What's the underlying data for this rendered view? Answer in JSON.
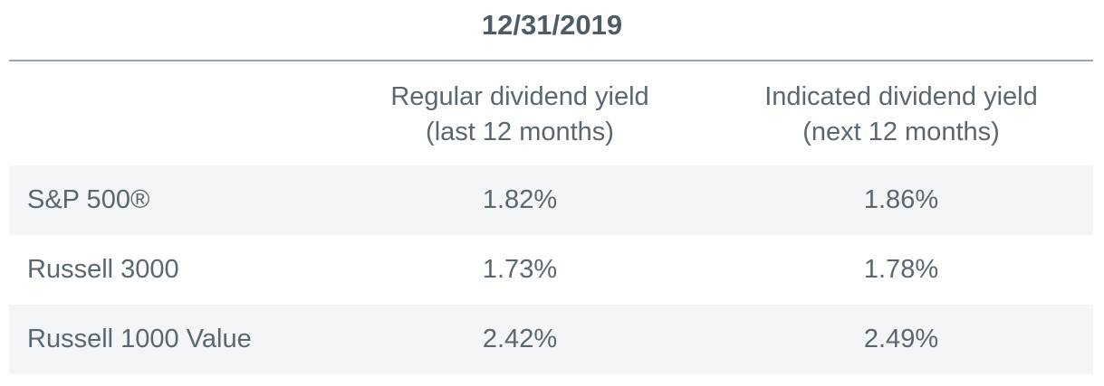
{
  "table": {
    "title": "12/31/2019",
    "columns": [
      [
        "Regular dividend yield",
        "(last 12 months)"
      ],
      [
        "Indicated dividend yield",
        "(next 12 months)"
      ]
    ],
    "rows": [
      [
        "S&P 500®",
        "1.82%",
        "1.86%"
      ],
      [
        "Russell 3000",
        "1.73%",
        "1.78%"
      ],
      [
        "Russell 1000 Value",
        "2.42%",
        "2.49%"
      ]
    ]
  }
}
